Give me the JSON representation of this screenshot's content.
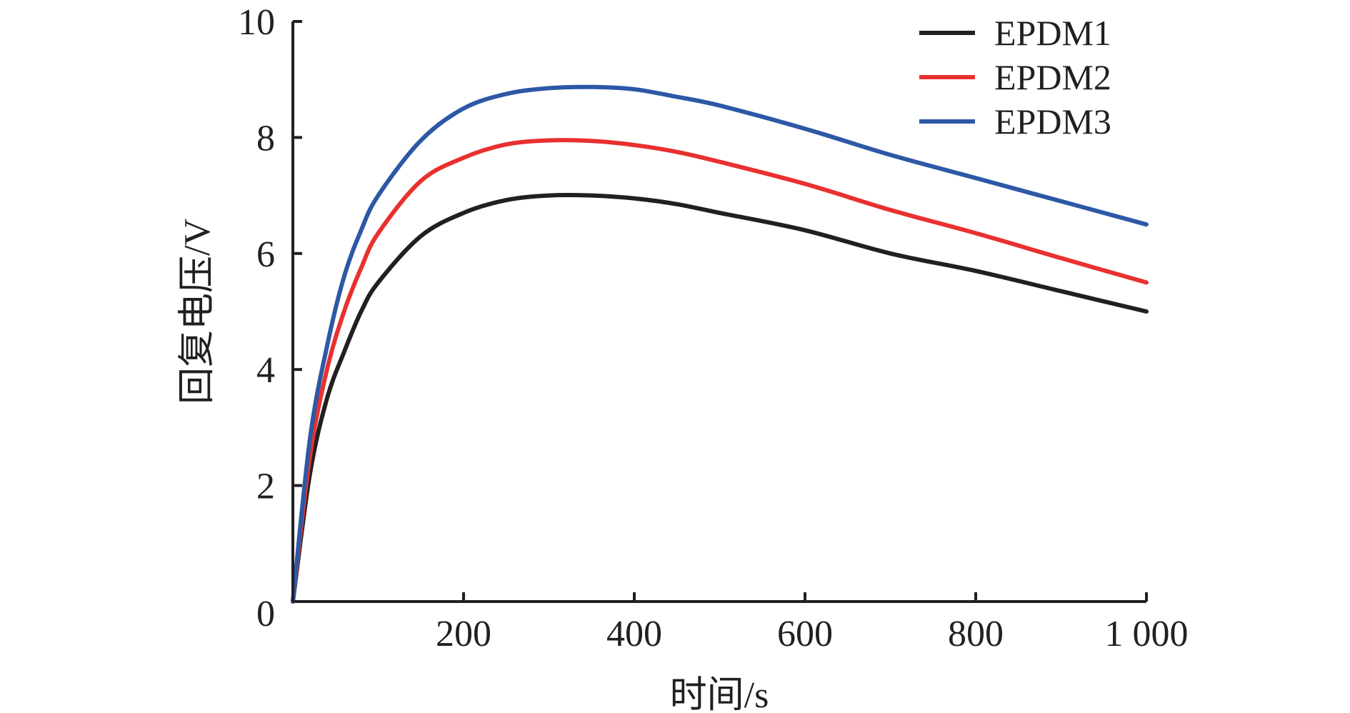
{
  "chart_data": {
    "type": "line",
    "title": "",
    "xlabel": "时间/s",
    "ylabel": "回复电压/V",
    "xlim": [
      0,
      1000
    ],
    "ylim": [
      0,
      10
    ],
    "xticks": [
      200,
      400,
      600,
      800,
      1000
    ],
    "xtick_labels": [
      "200",
      "400",
      "600",
      "800",
      "1 000"
    ],
    "yticks": [
      0,
      2,
      4,
      6,
      8,
      10
    ],
    "ytick_labels": [
      "0",
      "2",
      "4",
      "6",
      "8",
      "10"
    ],
    "grid": false,
    "legend_position": "top-right",
    "x": [
      0,
      20,
      40,
      60,
      80,
      100,
      150,
      200,
      250,
      300,
      350,
      400,
      450,
      500,
      600,
      700,
      800,
      900,
      1000
    ],
    "series": [
      {
        "name": "EPDM1",
        "color": "#231f20",
        "values": [
          0.0,
          2.2,
          3.5,
          4.3,
          5.0,
          5.5,
          6.3,
          6.7,
          6.92,
          7.0,
          7.0,
          6.95,
          6.85,
          6.7,
          6.4,
          6.0,
          5.7,
          5.35,
          5.0
        ]
      },
      {
        "name": "EPDM2",
        "color": "#e8312f",
        "values": [
          0.0,
          2.5,
          4.0,
          5.0,
          5.75,
          6.35,
          7.25,
          7.65,
          7.88,
          7.95,
          7.94,
          7.87,
          7.75,
          7.58,
          7.2,
          6.75,
          6.35,
          5.92,
          5.5
        ]
      },
      {
        "name": "EPDM3",
        "color": "#2d58a6",
        "values": [
          0.0,
          2.8,
          4.4,
          5.6,
          6.4,
          7.0,
          7.95,
          8.5,
          8.75,
          8.85,
          8.87,
          8.83,
          8.7,
          8.55,
          8.15,
          7.7,
          7.3,
          6.9,
          6.5
        ]
      }
    ]
  }
}
